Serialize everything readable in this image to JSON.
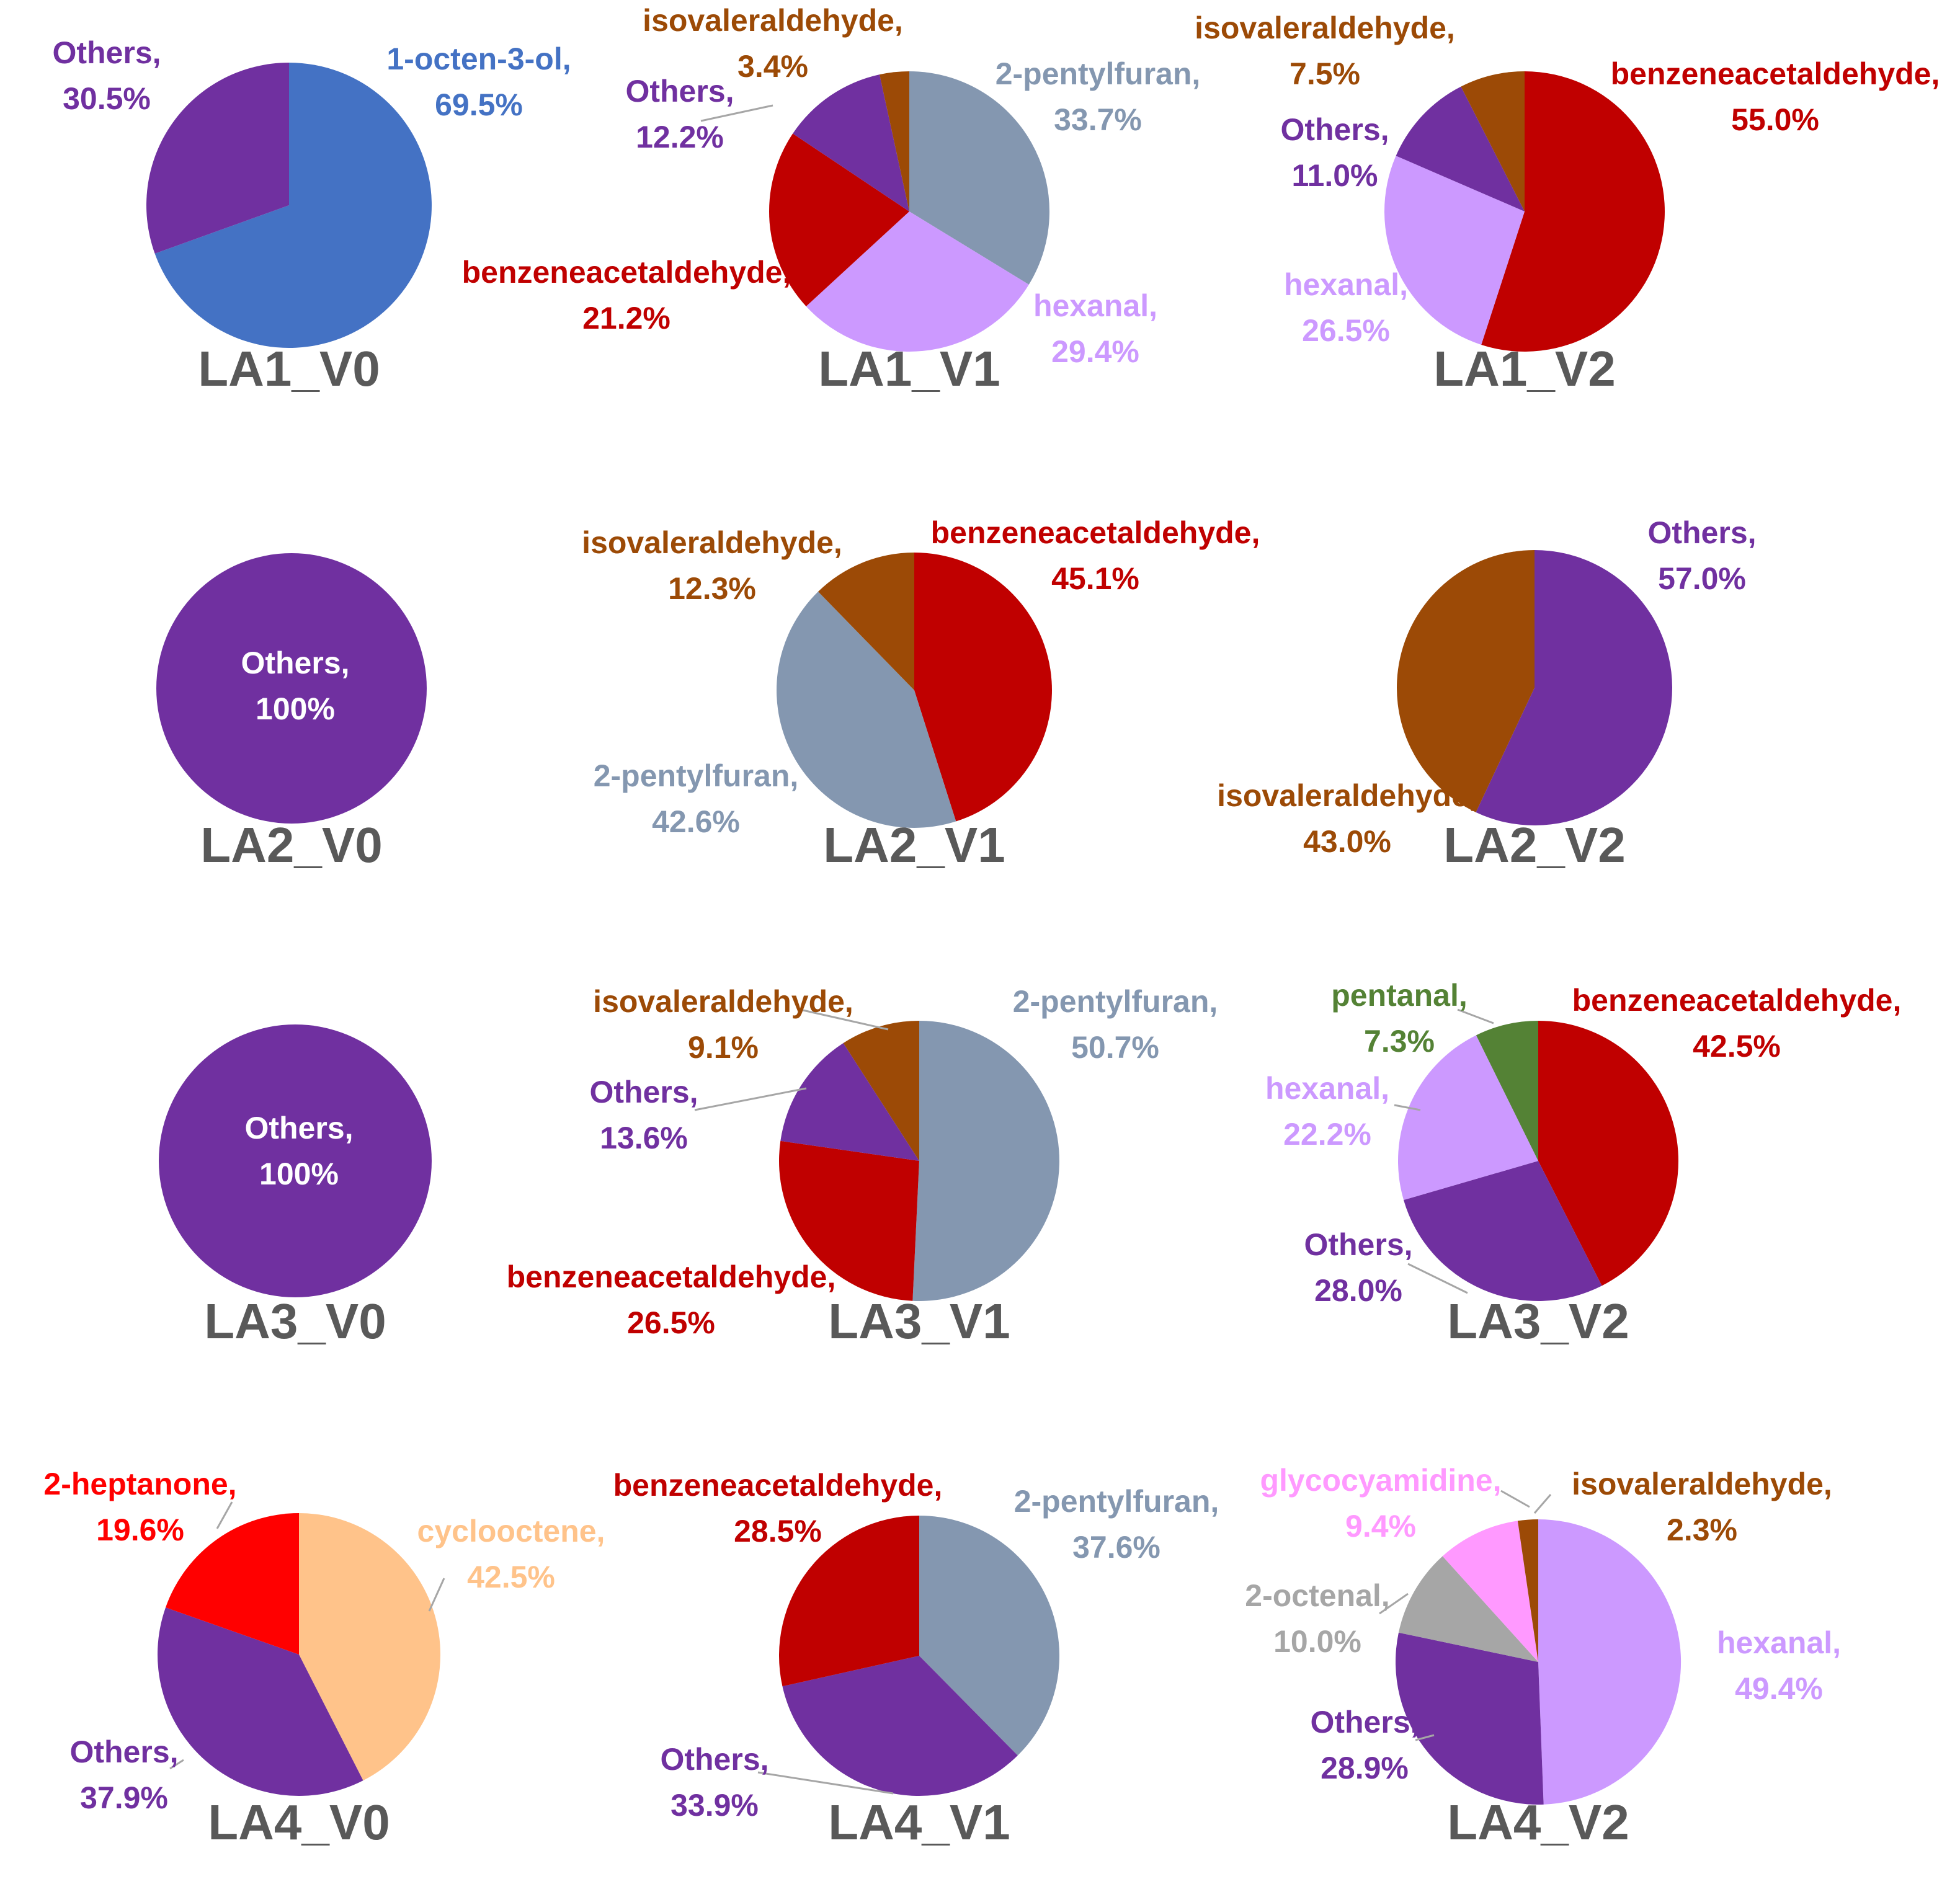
{
  "chart_data": [
    {
      "type": "pie",
      "title": "LA1_V0",
      "slices": [
        {
          "name": "1-octen-3-ol",
          "value": 69.5,
          "display": "69.5%",
          "color": "#4472C4"
        },
        {
          "name": "Others",
          "value": 30.5,
          "display": "30.5%",
          "color": "#7030A0"
        }
      ]
    },
    {
      "type": "pie",
      "title": "LA1_V1",
      "slices": [
        {
          "name": "2-pentylfuran",
          "value": 33.7,
          "display": "33.7%",
          "color": "#8497B0"
        },
        {
          "name": "hexanal",
          "value": 29.4,
          "display": "29.4%",
          "color": "#CC99FF"
        },
        {
          "name": "benzeneacetaldehyde",
          "value": 21.2,
          "display": "21.2%",
          "color": "#C00000"
        },
        {
          "name": "Others",
          "value": 12.2,
          "display": "12.2%",
          "color": "#7030A0"
        },
        {
          "name": "isovaleraldehyde",
          "value": 3.4,
          "display": "3.4%",
          "color": "#9C4A06"
        }
      ]
    },
    {
      "type": "pie",
      "title": "LA1_V2",
      "slices": [
        {
          "name": "benzeneacetaldehyde",
          "value": 55.0,
          "display": "55.0%",
          "color": "#C00000"
        },
        {
          "name": "hexanal",
          "value": 26.5,
          "display": "26.5%",
          "color": "#CC99FF"
        },
        {
          "name": "Others",
          "value": 11.0,
          "display": "11.0%",
          "color": "#7030A0"
        },
        {
          "name": "isovaleraldehyde",
          "value": 7.5,
          "display": "7.5%",
          "color": "#9C4A06"
        }
      ]
    },
    {
      "type": "pie",
      "title": "LA2_V0",
      "slices": [
        {
          "name": "Others",
          "value": 100,
          "display": "100%",
          "color": "#7030A0"
        }
      ]
    },
    {
      "type": "pie",
      "title": "LA2_V1",
      "slices": [
        {
          "name": "benzeneacetaldehyde",
          "value": 45.1,
          "display": "45.1%",
          "color": "#C00000"
        },
        {
          "name": "2-pentylfuran",
          "value": 42.6,
          "display": "42.6%",
          "color": "#8497B0"
        },
        {
          "name": "isovaleraldehyde",
          "value": 12.3,
          "display": "12.3%",
          "color": "#9C4A06"
        }
      ]
    },
    {
      "type": "pie",
      "title": "LA2_V2",
      "slices": [
        {
          "name": "Others",
          "value": 57.0,
          "display": "57.0%",
          "color": "#7030A0"
        },
        {
          "name": "isovaleraldehyde",
          "value": 43.0,
          "display": "43.0%",
          "color": "#9C4A06"
        }
      ]
    },
    {
      "type": "pie",
      "title": "LA3_V0",
      "slices": [
        {
          "name": "Others",
          "value": 100,
          "display": "100%",
          "color": "#7030A0"
        }
      ]
    },
    {
      "type": "pie",
      "title": "LA3_V1",
      "slices": [
        {
          "name": "2-pentylfuran",
          "value": 50.7,
          "display": "50.7%",
          "color": "#8497B0"
        },
        {
          "name": "benzeneacetaldehyde",
          "value": 26.5,
          "display": "26.5%",
          "color": "#C00000"
        },
        {
          "name": "Others",
          "value": 13.6,
          "display": "13.6%",
          "color": "#7030A0"
        },
        {
          "name": "isovaleraldehyde",
          "value": 9.1,
          "display": "9.1%",
          "color": "#9C4A06"
        }
      ]
    },
    {
      "type": "pie",
      "title": "LA3_V2",
      "slices": [
        {
          "name": "benzeneacetaldehyde",
          "value": 42.5,
          "display": "42.5%",
          "color": "#C00000"
        },
        {
          "name": "Others",
          "value": 28.0,
          "display": "28.0%",
          "color": "#7030A0"
        },
        {
          "name": "hexanal",
          "value": 22.2,
          "display": "22.2%",
          "color": "#CC99FF"
        },
        {
          "name": "pentanal",
          "value": 7.3,
          "display": "7.3%",
          "color": "#548235"
        }
      ]
    },
    {
      "type": "pie",
      "title": "LA4_V0",
      "slices": [
        {
          "name": "cyclooctene",
          "value": 42.5,
          "display": "42.5%",
          "color": "#FFC38A"
        },
        {
          "name": "Others",
          "value": 37.9,
          "display": "37.9%",
          "color": "#7030A0"
        },
        {
          "name": "2-heptanone",
          "value": 19.6,
          "display": "19.6%",
          "color": "#FF0000"
        }
      ]
    },
    {
      "type": "pie",
      "title": "LA4_V1",
      "slices": [
        {
          "name": "2-pentylfuran",
          "value": 37.6,
          "display": "37.6%",
          "color": "#8497B0"
        },
        {
          "name": "Others",
          "value": 33.9,
          "display": "33.9%",
          "color": "#7030A0"
        },
        {
          "name": "benzeneacetaldehyde",
          "value": 28.5,
          "display": "28.5%",
          "color": "#C00000"
        }
      ]
    },
    {
      "type": "pie",
      "title": "LA4_V2",
      "slices": [
        {
          "name": "hexanal",
          "value": 49.4,
          "display": "49.4%",
          "color": "#CC99FF"
        },
        {
          "name": "Others",
          "value": 28.9,
          "display": "28.9%",
          "color": "#7030A0"
        },
        {
          "name": "2-octenal",
          "value": 10.0,
          "display": "10.0%",
          "color": "#A6A6A6"
        },
        {
          "name": "glycocyamidine",
          "value": 9.4,
          "display": "9.4%",
          "color": "#FF99FF"
        },
        {
          "name": "isovaleraldehyde",
          "value": 2.3,
          "display": "2.3%",
          "color": "#9C4A06"
        }
      ]
    }
  ]
}
